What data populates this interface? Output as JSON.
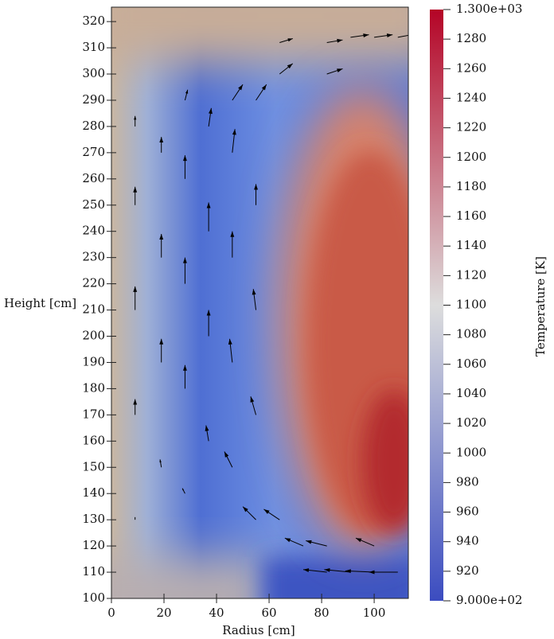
{
  "chart_data": {
    "type": "vector-field",
    "xlabel": "Radius [cm]",
    "ylabel": "Height [cm]",
    "colorbar_label": "Temperature [K]",
    "xlim": [
      0,
      113
    ],
    "ylim": [
      100,
      325.5
    ],
    "xticks": [
      0,
      20,
      40,
      60,
      80,
      100
    ],
    "yticks": [
      100,
      110,
      120,
      130,
      140,
      150,
      160,
      170,
      180,
      190,
      200,
      210,
      220,
      230,
      240,
      250,
      260,
      270,
      280,
      290,
      300,
      310,
      320
    ],
    "clim": [
      900,
      1300
    ],
    "cticks": [
      {
        "value": 900,
        "label": "9.000e+02"
      },
      920,
      940,
      960,
      980,
      1000,
      1020,
      1040,
      1060,
      1080,
      1100,
      1120,
      1140,
      1160,
      1180,
      1200,
      1220,
      1240,
      1260,
      1280,
      {
        "value": 1300,
        "label": "1.300e+03"
      }
    ],
    "colormap": [
      "#3b4cc0",
      "#dddddd",
      "#b40426"
    ],
    "arrow_color": "#000000",
    "vectors": {
      "x": [
        9,
        9,
        9,
        9,
        9,
        19,
        19,
        19,
        19,
        28,
        28,
        28,
        28,
        28,
        37,
        37,
        37,
        37,
        46,
        46,
        46,
        46,
        46,
        55,
        55,
        55,
        55,
        55,
        64,
        64,
        64,
        73,
        82,
        82,
        82,
        91,
        100,
        109,
        91,
        100,
        109,
        82,
        100
      ],
      "y": [
        130,
        170,
        210,
        250,
        280,
        150,
        190,
        230,
        270,
        140,
        180,
        220,
        260,
        290,
        160,
        200,
        240,
        280,
        150,
        190,
        230,
        270,
        290,
        130,
        170,
        210,
        250,
        290,
        130,
        300,
        312,
        120,
        300,
        312,
        110,
        110,
        110,
        110,
        314,
        314,
        314,
        120,
        120
      ],
      "u": [
        0,
        0,
        0,
        0,
        0,
        -0.5,
        0,
        0,
        0,
        -1,
        0,
        0,
        0,
        1,
        -1,
        0,
        0,
        1,
        -3,
        -1,
        0,
        1,
        4,
        -5,
        -2,
        -1,
        0,
        4,
        -6,
        5,
        5,
        -7,
        6,
        6,
        -9,
        -10,
        -11,
        -11,
        7,
        7,
        8,
        -8,
        -7
      ],
      "v": [
        1,
        6,
        9,
        7,
        4,
        3,
        9,
        9,
        6,
        2,
        9,
        10,
        9,
        4,
        6,
        10,
        11,
        7,
        6,
        9,
        10,
        9,
        6,
        5,
        7,
        8,
        8,
        6,
        4,
        4,
        1.5,
        3,
        2,
        1,
        1,
        1,
        0.5,
        0,
        1,
        1,
        1.5,
        2,
        3
      ]
    }
  }
}
